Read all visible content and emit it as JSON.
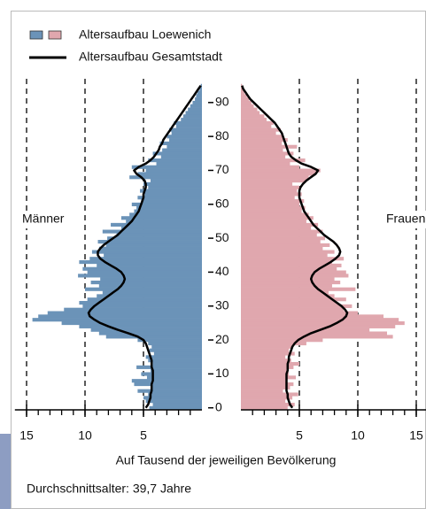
{
  "chart_data": {
    "type": "population_pyramid",
    "sides": {
      "left": "Männer",
      "right": "Frauen"
    },
    "xlabel": "Auf Tausend der jeweiligen Bevölkerung",
    "note": "Durchschnittsalter: 39,7 Jahre",
    "categories": [
      0,
      1,
      2,
      3,
      4,
      5,
      6,
      7,
      8,
      9,
      10,
      11,
      12,
      13,
      14,
      15,
      16,
      17,
      18,
      19,
      20,
      21,
      22,
      23,
      24,
      25,
      26,
      27,
      28,
      29,
      30,
      31,
      32,
      33,
      34,
      35,
      36,
      37,
      38,
      39,
      40,
      41,
      42,
      43,
      44,
      45,
      46,
      47,
      48,
      49,
      50,
      51,
      52,
      53,
      54,
      55,
      56,
      57,
      58,
      59,
      60,
      61,
      62,
      63,
      64,
      65,
      66,
      67,
      68,
      69,
      70,
      71,
      72,
      73,
      74,
      75,
      76,
      77,
      78,
      79,
      80,
      81,
      82,
      83,
      84,
      85,
      86,
      87,
      88,
      89,
      90,
      91,
      92,
      93,
      94,
      95
    ],
    "series": [
      {
        "name": "Altersaufbau Loewenich",
        "kind": "bar",
        "colors": {
          "left": "#6b93b8",
          "right": "#e0a7ae"
        },
        "left": [
          4.5,
          4.2,
          4.8,
          5.0,
          4.6,
          5.5,
          4.3,
          5.8,
          6.0,
          4.7,
          5.2,
          4.4,
          5.6,
          4.2,
          4.6,
          4.8,
          4.1,
          4.5,
          4.3,
          4.6,
          5.5,
          8.2,
          8.8,
          9.5,
          10.5,
          12.0,
          14.5,
          14.0,
          13.2,
          11.8,
          10.2,
          10.5,
          9.8,
          9.0,
          8.5,
          10.0,
          8.8,
          9.5,
          8.7,
          10.6,
          9.8,
          10.2,
          9.0,
          10.5,
          9.6,
          8.4,
          9.4,
          8.8,
          8.2,
          8.9,
          8.1,
          7.3,
          8.5,
          6.9,
          7.8,
          6.5,
          6.9,
          6.2,
          5.8,
          5.6,
          6.0,
          5.2,
          5.5,
          4.9,
          5.3,
          4.6,
          5.0,
          4.4,
          6.2,
          5.5,
          4.8,
          6.0,
          3.9,
          4.6,
          3.5,
          4.2,
          3.4,
          3.0,
          3.6,
          2.8,
          3.0,
          2.6,
          2.8,
          2.2,
          2.4,
          1.8,
          1.6,
          1.4,
          1.2,
          1.0,
          0.8,
          0.6,
          0.5,
          0.4,
          0.2,
          0.1
        ],
        "right": [
          4.0,
          4.6,
          3.8,
          4.4,
          4.9,
          3.6,
          4.2,
          4.5,
          3.9,
          4.7,
          4.1,
          3.9,
          4.5,
          5.0,
          4.3,
          3.8,
          4.6,
          4.1,
          4.4,
          5.6,
          7.0,
          13.0,
          12.5,
          11.0,
          13.2,
          14.0,
          13.5,
          12.2,
          10.0,
          8.8,
          9.5,
          8.2,
          9.0,
          8.0,
          7.5,
          9.8,
          7.8,
          8.5,
          8.0,
          9.2,
          9.0,
          8.2,
          8.6,
          7.8,
          8.8,
          7.4,
          8.0,
          7.0,
          7.6,
          6.8,
          7.2,
          6.5,
          7.0,
          6.0,
          6.6,
          5.6,
          6.2,
          5.8,
          5.2,
          5.5,
          5.0,
          5.4,
          4.6,
          5.2,
          4.8,
          5.0,
          4.4,
          5.6,
          5.8,
          6.4,
          6.8,
          5.0,
          4.2,
          5.5,
          3.8,
          4.5,
          3.6,
          4.8,
          3.5,
          4.0,
          3.6,
          3.0,
          3.4,
          2.6,
          2.8,
          2.2,
          2.0,
          1.6,
          1.4,
          1.1,
          0.9,
          0.7,
          0.5,
          0.3,
          0.2,
          0.1
        ]
      },
      {
        "name": "Altersaufbau Gesamtstadt",
        "kind": "line",
        "color": "#000000",
        "left": [
          4.8,
          4.6,
          4.5,
          4.4,
          4.4,
          4.3,
          4.3,
          4.3,
          4.2,
          4.2,
          4.2,
          4.2,
          4.3,
          4.3,
          4.3,
          4.4,
          4.5,
          4.6,
          4.7,
          4.8,
          5.0,
          5.5,
          6.3,
          7.2,
          8.0,
          8.7,
          9.2,
          9.6,
          9.7,
          9.5,
          9.2,
          8.8,
          8.4,
          8.0,
          7.6,
          7.2,
          6.9,
          6.7,
          6.6,
          6.7,
          6.9,
          7.3,
          7.8,
          8.3,
          8.7,
          8.9,
          8.9,
          8.7,
          8.4,
          8.0,
          7.6,
          7.2,
          6.9,
          6.6,
          6.3,
          6.0,
          5.8,
          5.6,
          5.4,
          5.3,
          5.2,
          5.1,
          5.0,
          5.0,
          4.9,
          4.8,
          4.8,
          4.9,
          5.2,
          5.6,
          5.8,
          5.4,
          4.8,
          4.4,
          4.1,
          3.9,
          3.7,
          3.6,
          3.4,
          3.3,
          3.1,
          2.9,
          2.7,
          2.5,
          2.3,
          2.1,
          1.9,
          1.7,
          1.5,
          1.3,
          1.1,
          0.9,
          0.7,
          0.5,
          0.3,
          0.1
        ],
        "right": [
          4.4,
          4.2,
          4.1,
          4.0,
          4.0,
          3.9,
          3.9,
          3.9,
          3.9,
          3.9,
          3.9,
          4.0,
          4.0,
          4.0,
          4.1,
          4.1,
          4.2,
          4.3,
          4.4,
          4.6,
          4.9,
          5.4,
          6.0,
          6.8,
          7.6,
          8.2,
          8.7,
          9.0,
          9.1,
          8.9,
          8.6,
          8.2,
          7.8,
          7.4,
          7.0,
          6.6,
          6.3,
          6.1,
          6.0,
          6.1,
          6.3,
          6.7,
          7.2,
          7.7,
          8.1,
          8.4,
          8.5,
          8.4,
          8.2,
          7.9,
          7.5,
          7.1,
          6.8,
          6.5,
          6.2,
          6.0,
          5.8,
          5.6,
          5.4,
          5.3,
          5.2,
          5.1,
          5.0,
          5.0,
          5.0,
          5.1,
          5.3,
          5.6,
          6.0,
          6.4,
          6.6,
          6.0,
          5.2,
          4.7,
          4.3,
          4.1,
          4.0,
          3.9,
          3.8,
          3.7,
          3.6,
          3.5,
          3.3,
          3.1,
          2.9,
          2.6,
          2.3,
          2.0,
          1.7,
          1.4,
          1.1,
          0.8,
          0.6,
          0.4,
          0.2,
          0.1
        ]
      }
    ],
    "xlim": [
      0,
      16
    ],
    "xticks": [
      5,
      10,
      15
    ],
    "xticks_minor": [
      1,
      2,
      3,
      4,
      5,
      6,
      7,
      8,
      9,
      10,
      11,
      12,
      13,
      14,
      15
    ],
    "ylim": [
      -0.6,
      97
    ],
    "yticks": [
      0,
      10,
      20,
      30,
      40,
      50,
      60,
      70,
      80,
      90
    ]
  }
}
